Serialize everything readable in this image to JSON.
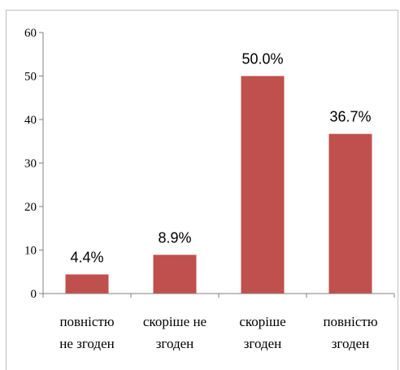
{
  "chart_data": {
    "type": "bar",
    "title": "",
    "xlabel": "",
    "ylabel": "",
    "ylim": [
      0,
      60
    ],
    "yticks": [
      0,
      10,
      20,
      30,
      40,
      50,
      60
    ],
    "grid": false,
    "categories": [
      [
        "повністю",
        "не згоден"
      ],
      [
        "скоріше не",
        "згоден"
      ],
      [
        "скоріше",
        "згоден"
      ],
      [
        "повністю",
        "згоден"
      ]
    ],
    "values": [
      4.4,
      8.9,
      50.0,
      36.7
    ],
    "data_labels": [
      "4.4%",
      "8.9%",
      "50.0%",
      "36.7%"
    ],
    "bar_color": "#c0504d"
  }
}
